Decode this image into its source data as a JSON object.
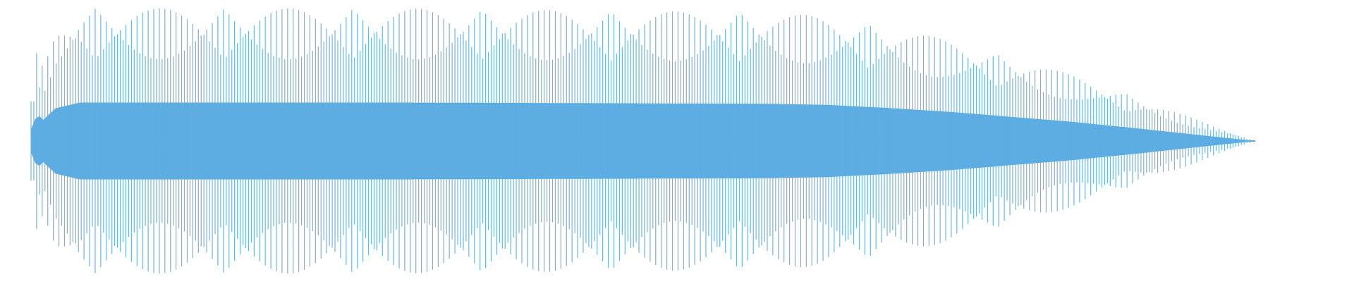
{
  "colors": {
    "background": "#ffffff",
    "waveform": "#5dade2"
  },
  "chart_data": {
    "type": "area",
    "title": "",
    "xlabel": "",
    "ylabel": "",
    "grid": false,
    "legend": "none",
    "description_series": [
      {
        "name": "",
        "time": [
          0.0,
          0.005,
          0.01,
          0.02,
          0.04,
          0.1,
          0.2,
          0.3,
          0.4,
          0.5,
          0.6,
          0.65,
          0.7,
          0.75,
          0.8,
          0.85,
          0.9,
          0.95,
          1.0
        ],
        "envelope": [
          0.3,
          0.7,
          0.55,
          0.85,
          1.0,
          1.0,
          1.0,
          1.0,
          0.99,
          0.98,
          0.97,
          0.94,
          0.86,
          0.76,
          0.63,
          0.5,
          0.34,
          0.17,
          0.0
        ],
        "inner_envelope_min": 0.15,
        "beat_cycles": 9.5,
        "carrier_cycles": 440
      }
    ],
    "ylim": [
      -1,
      1
    ],
    "xlim": [
      0,
      1
    ]
  }
}
